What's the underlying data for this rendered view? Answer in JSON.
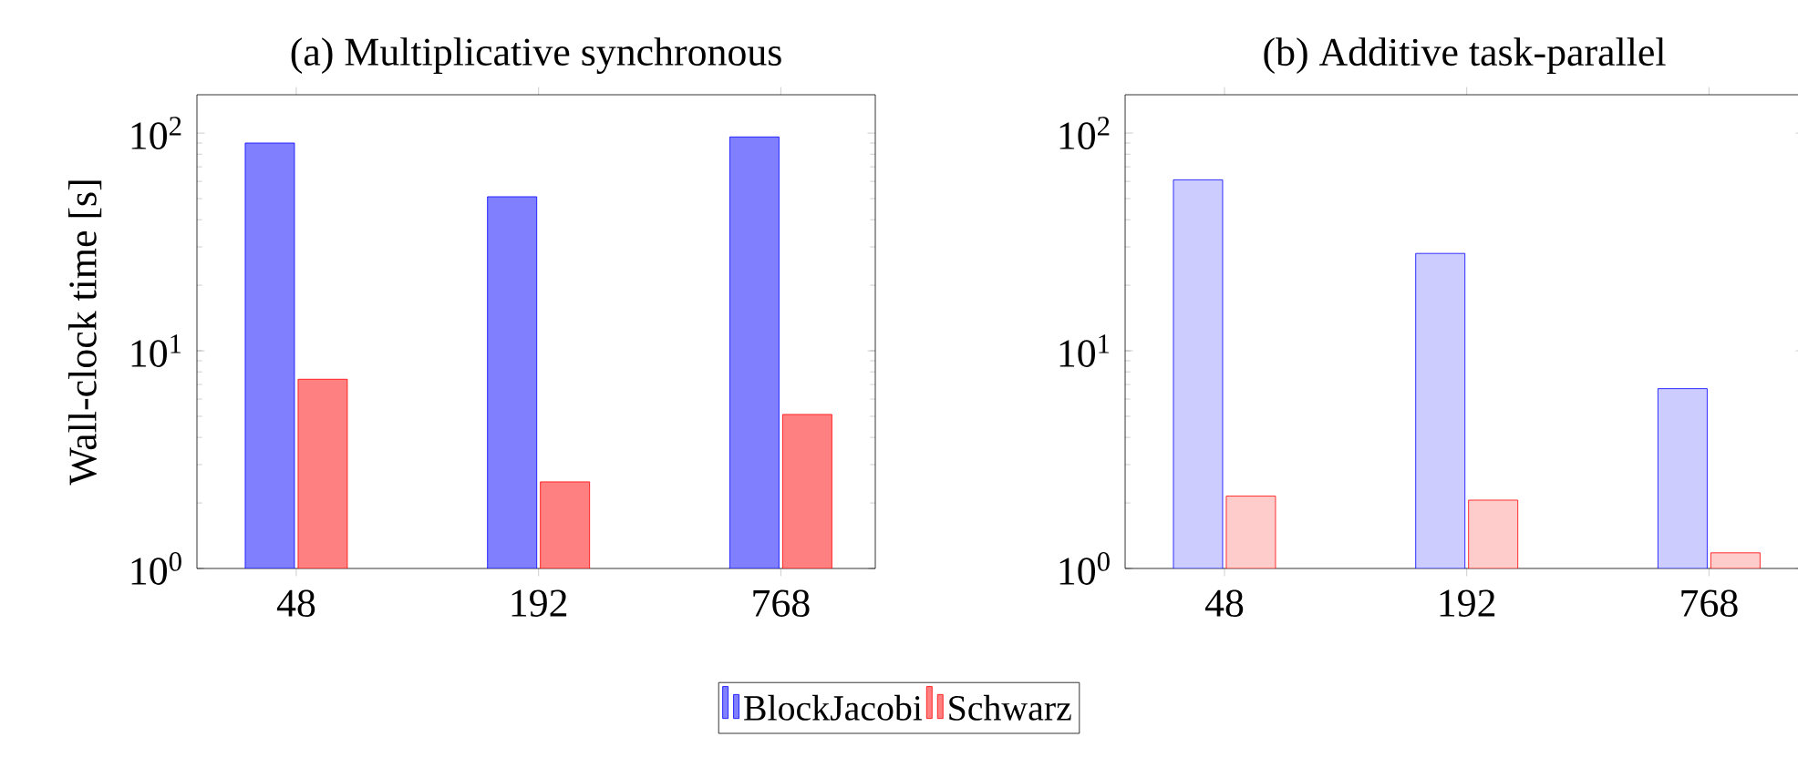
{
  "chart_data": [
    {
      "type": "bar",
      "title": "(a) Multiplicative synchronous",
      "ylabel": "Wall-clock time [s]",
      "categories": [
        "48",
        "192",
        "768"
      ],
      "log": "y",
      "ylim": [
        1,
        150
      ],
      "yticks": [
        {
          "value": 1,
          "label": "10$^{0}$"
        },
        {
          "value": 10,
          "label": "10$^{1}$"
        },
        {
          "value": 100,
          "label": "10$^{2}$"
        }
      ],
      "legend": "bottom",
      "series": [
        {
          "name": "BlockJacobi",
          "color": "#8080ff",
          "values": [
            90,
            51,
            96
          ]
        },
        {
          "name": "Schwarz",
          "color": "#ff8080",
          "values": [
            7.4,
            2.5,
            5.1
          ]
        }
      ]
    },
    {
      "type": "bar",
      "title": "(b) Additive task-parallel",
      "categories": [
        "48",
        "192",
        "768"
      ],
      "log": "y",
      "ylim": [
        1,
        150
      ],
      "yticks": [
        {
          "value": 1,
          "label": "10$^{0}$"
        },
        {
          "value": 10,
          "label": "10$^{1}$"
        },
        {
          "value": 100,
          "label": "10$^{2}$"
        }
      ],
      "series": [
        {
          "color": "#ccccff",
          "values": [
            61,
            28,
            6.7
          ]
        },
        {
          "color": "#ffcccc",
          "values": [
            2.15,
            2.06,
            1.18
          ]
        }
      ]
    }
  ]
}
